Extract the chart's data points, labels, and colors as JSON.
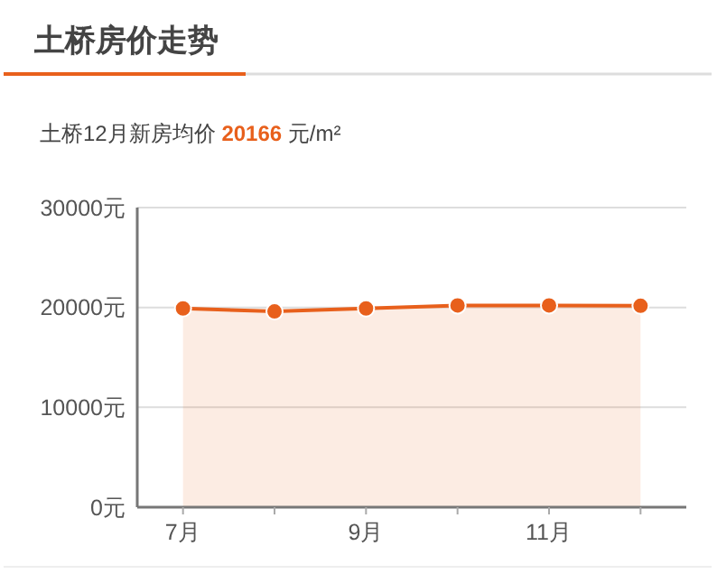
{
  "chart_data": {
    "type": "area",
    "title": "土桥房价走势",
    "subtitle": "土桥12月新房均价 20166 元/m²",
    "categories": [
      "7月",
      null,
      "9月",
      null,
      "11月",
      null
    ],
    "series": [
      {
        "color": "#e8601c",
        "values": [
          19900,
          19600,
          19900,
          20200,
          20200,
          20166
        ]
      }
    ],
    "ylim": [
      0,
      30000
    ],
    "yticks": [
      {
        "value": 0,
        "label": "0元"
      },
      {
        "value": 10000,
        "label": "10000元"
      },
      {
        "value": 20000,
        "label": "20000元"
      },
      {
        "value": 30000,
        "label": "30000元"
      }
    ],
    "grid": "y",
    "marker": "circle"
  }
}
